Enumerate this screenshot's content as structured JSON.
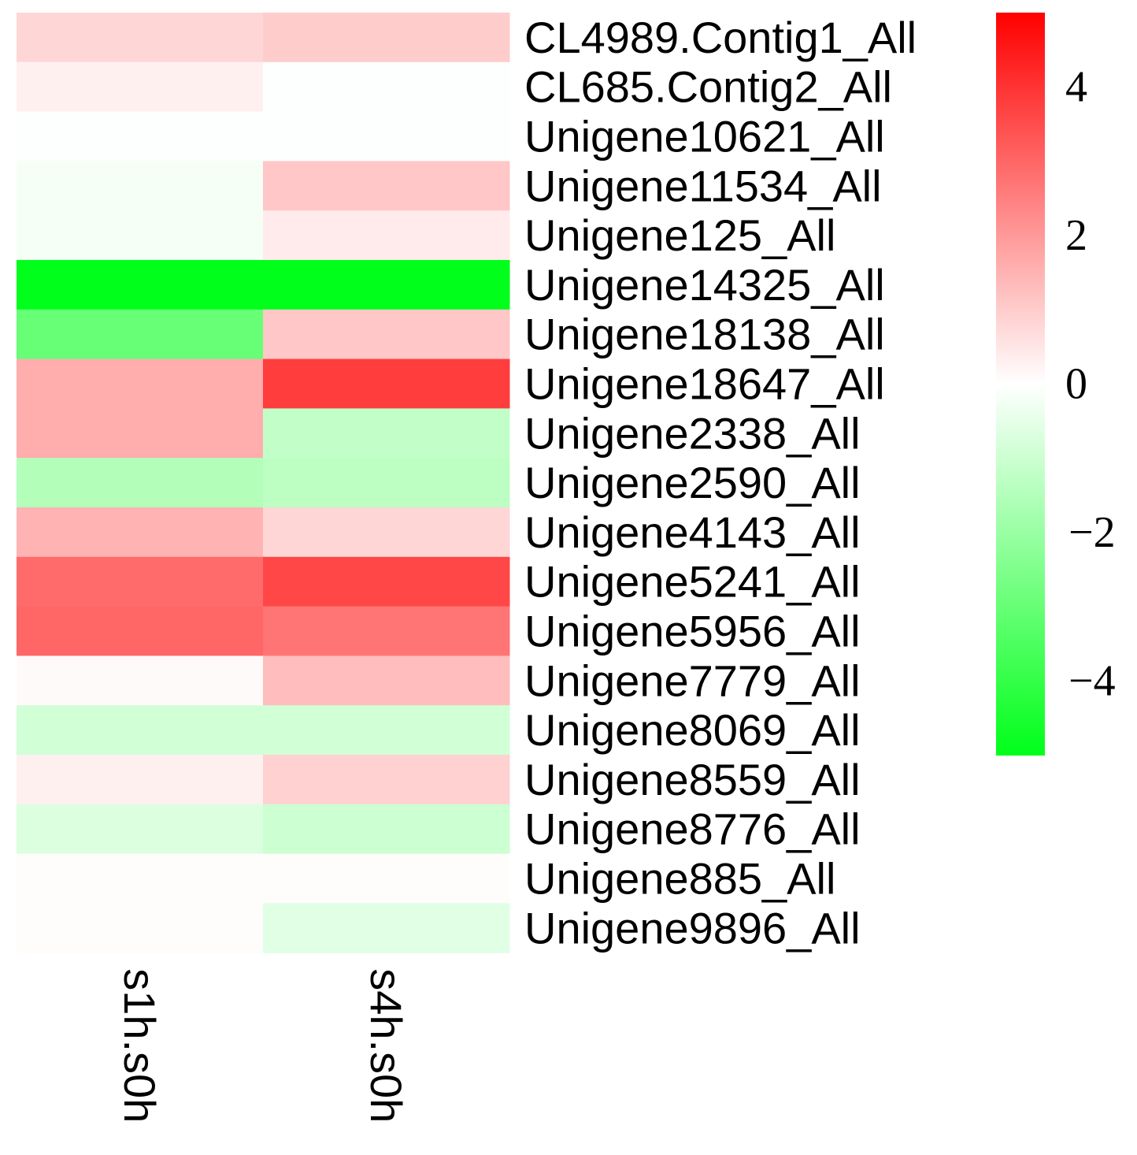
{
  "chart_data": {
    "type": "heatmap",
    "title": "",
    "xlabel": "",
    "ylabel": "",
    "columns": [
      "s1h.s0h",
      "s4h.s0h"
    ],
    "rows": [
      "CL4989.Contig1_All",
      "CL685.Contig2_All",
      "Unigene10621_All",
      "Unigene11534_All",
      "Unigene125_All",
      "Unigene14325_All",
      "Unigene18138_All",
      "Unigene18647_All",
      "Unigene2338_All",
      "Unigene2590_All",
      "Unigene4143_All",
      "Unigene5241_All",
      "Unigene5956_All",
      "Unigene7779_All",
      "Unigene8069_All",
      "Unigene8559_All",
      "Unigene8776_All",
      "Unigene885_All",
      "Unigene9896_All"
    ],
    "values": [
      [
        0.8,
        1.0
      ],
      [
        0.3,
        -0.05
      ],
      [
        -0.05,
        -0.05
      ],
      [
        -0.2,
        1.1
      ],
      [
        -0.2,
        0.4
      ],
      [
        -5.0,
        -5.0
      ],
      [
        -3.0,
        1.1
      ],
      [
        1.6,
        3.8
      ],
      [
        1.6,
        -1.2
      ],
      [
        -1.5,
        -1.3
      ],
      [
        1.5,
        0.8
      ],
      [
        2.9,
        3.6
      ],
      [
        3.0,
        2.7
      ],
      [
        0.1,
        1.3
      ],
      [
        -0.9,
        -0.9
      ],
      [
        0.3,
        0.9
      ],
      [
        -0.7,
        -1.0
      ],
      [
        0.05,
        0.05
      ],
      [
        0.05,
        -0.6
      ]
    ],
    "color_scale": {
      "min": -5,
      "max": 5,
      "low_color": "#00ff1a",
      "mid_color": "#ffffff",
      "high_color": "#ff0000",
      "ticks": [
        4,
        2,
        0,
        -2,
        -4
      ],
      "tick_labels": [
        "4",
        "2",
        "0",
        "−2",
        "−4"
      ]
    },
    "legend_position": "right"
  }
}
